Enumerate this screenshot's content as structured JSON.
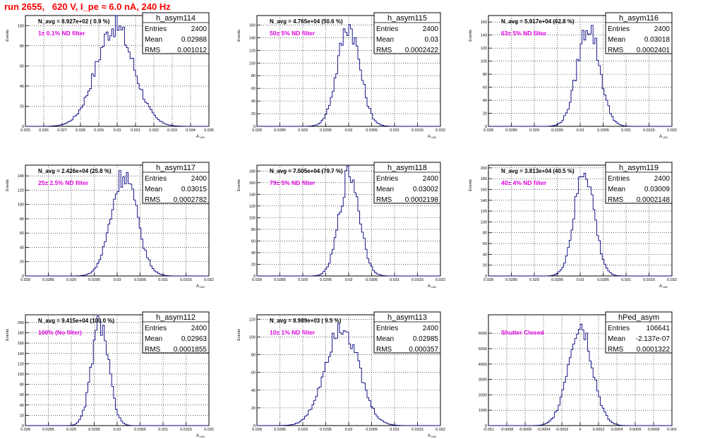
{
  "page": {
    "title": "run 2655,   620 V, I_pe ≈ 6.0 nA, 240 Hz"
  },
  "chart_data": [
    {
      "type": "histogram",
      "name": "h_asym114",
      "stats": {
        "Entries": "2400",
        "Mean": "0.02988",
        "RMS": "0.001012"
      },
      "navg": "N_avg = 8.927e+02 ( 0.9 %)",
      "filter": "1± 0.1% ND filter",
      "xlabel": "A_UID",
      "ylabel": "Events",
      "xlim": [
        0.025,
        0.035
      ],
      "xticks": [
        "0.025",
        "0.026",
        "0.027",
        "0.028",
        "0.029",
        "0.03",
        "0.031",
        "0.032",
        "0.033",
        "0.034",
        "0.035"
      ],
      "ylim": [
        0,
        110
      ],
      "yticks": [
        0,
        20,
        40,
        60,
        80,
        100
      ],
      "mean": 0.02988,
      "rms": 0.001012,
      "peak": 100
    },
    {
      "type": "histogram",
      "name": "h_asym115",
      "stats": {
        "Entries": "2400",
        "Mean": "0.03",
        "RMS": "0.0002422"
      },
      "navg": "N_avg = 4.765e+04 (50.6 %)",
      "filter": "50± 5% ND filter",
      "xlabel": "A_UID",
      "ylabel": "Events",
      "xlim": [
        0.028,
        0.032
      ],
      "xticks": [
        "0.028",
        "0.0285",
        "0.029",
        "0.0295",
        "0.03",
        "0.0305",
        "0.031",
        "0.0315",
        "0.032"
      ],
      "ylim": [
        0,
        175
      ],
      "yticks": [
        0,
        20,
        40,
        60,
        80,
        100,
        120,
        140,
        160
      ],
      "mean": 0.03,
      "rms": 0.0002422,
      "peak": 160
    },
    {
      "type": "histogram",
      "name": "h_asym116",
      "stats": {
        "Entries": "2400",
        "Mean": "0.03018",
        "RMS": "0.0002401"
      },
      "navg": "N_avg = 5.917e+04 (62.8 %)",
      "filter": "63± 5% ND filter",
      "xlabel": "A_UID",
      "ylabel": "Events",
      "xlim": [
        0.028,
        0.032
      ],
      "xticks": [
        "0.028",
        "0.0285",
        "0.029",
        "0.0295",
        "0.03",
        "0.0305",
        "0.031",
        "0.0315",
        "0.032"
      ],
      "ylim": [
        0,
        170
      ],
      "yticks": [
        0,
        20,
        40,
        60,
        80,
        100,
        120,
        140,
        160
      ],
      "mean": 0.03018,
      "rms": 0.0002401,
      "peak": 155
    },
    {
      "type": "histogram",
      "name": "h_asym117",
      "stats": {
        "Entries": "2400",
        "Mean": "0.03015",
        "RMS": "0.0002782"
      },
      "navg": "N_avg = 2.426e+04 (25.8 %)",
      "filter": "25± 2.5% ND filter",
      "xlabel": "A_UID",
      "ylabel": "Events",
      "xlim": [
        0.028,
        0.032
      ],
      "xticks": [
        "0.028",
        "0.0285",
        "0.029",
        "0.0295",
        "0.03",
        "0.0305",
        "0.031",
        "0.0315",
        "0.032"
      ],
      "ylim": [
        0,
        155
      ],
      "yticks": [
        0,
        20,
        40,
        60,
        80,
        100,
        120,
        140
      ],
      "mean": 0.03015,
      "rms": 0.0002782,
      "peak": 143
    },
    {
      "type": "histogram",
      "name": "h_asym118",
      "stats": {
        "Entries": "2400",
        "Mean": "0.03002",
        "RMS": "0.0002198"
      },
      "navg": "N_avg = 7.505e+04 (79.7 %)",
      "filter": "79± 5% ND filter",
      "xlabel": "A_UID",
      "ylabel": "Events",
      "xlim": [
        0.028,
        0.032
      ],
      "xticks": [
        "0.028",
        "0.0285",
        "0.029",
        "0.0295",
        "0.03",
        "0.0305",
        "0.031",
        "0.0315",
        "0.032"
      ],
      "ylim": [
        0,
        190
      ],
      "yticks": [
        0,
        20,
        40,
        60,
        80,
        100,
        120,
        140,
        160,
        180
      ],
      "mean": 0.03002,
      "rms": 0.0002198,
      "peak": 175
    },
    {
      "type": "histogram",
      "name": "h_asym119",
      "stats": {
        "Entries": "2400",
        "Mean": "0.03009",
        "RMS": "0.0002148"
      },
      "navg": "N_avg = 3.813e+04 (40.5 %)",
      "filter": "40± 4% ND filter",
      "xlabel": "A_UID",
      "ylabel": "Events",
      "xlim": [
        0.028,
        0.032
      ],
      "xticks": [
        "0.028",
        "0.0285",
        "0.029",
        "0.0295",
        "0.03",
        "0.0305",
        "0.031",
        "0.0315",
        "0.032"
      ],
      "ylim": [
        0,
        205
      ],
      "yticks": [
        0,
        20,
        40,
        60,
        80,
        100,
        120,
        140,
        160,
        180,
        200
      ],
      "mean": 0.03009,
      "rms": 0.0002148,
      "peak": 195
    },
    {
      "type": "histogram",
      "name": "h_asym112",
      "stats": {
        "Entries": "2400",
        "Mean": "0.02963",
        "RMS": "0.0001855"
      },
      "navg": "N_avg = 9.415e+04 (100.0 %)",
      "filter": "100% (No filter)",
      "xlabel": "A_UID",
      "ylabel": "Events",
      "xlim": [
        0.028,
        0.032
      ],
      "xticks": [
        "0.028",
        "0.0285",
        "0.029",
        "0.0295",
        "0.03",
        "0.0305",
        "0.031",
        "0.0315",
        "0.032"
      ],
      "ylim": [
        0,
        215
      ],
      "yticks": [
        0,
        20,
        40,
        60,
        80,
        100,
        120,
        140,
        160,
        180,
        200
      ],
      "mean": 0.02963,
      "rms": 0.0001855,
      "peak": 200
    },
    {
      "type": "histogram",
      "name": "h_asym113",
      "stats": {
        "Entries": "2400",
        "Mean": "0.02985",
        "RMS": "0.000357"
      },
      "navg": "N_avg = 8.989e+03 ( 9.5 %)",
      "filter": "10± 1% ND filter",
      "xlabel": "A_UID",
      "ylabel": "Events",
      "xlim": [
        0.028,
        0.032
      ],
      "xticks": [
        "0.028",
        "0.0285",
        "0.029",
        "0.0295",
        "0.03",
        "0.0305",
        "0.031",
        "0.0315",
        "0.032"
      ],
      "ylim": [
        0,
        125
      ],
      "yticks": [
        0,
        20,
        40,
        60,
        80,
        100,
        120
      ],
      "mean": 0.02985,
      "rms": 0.000357,
      "peak": 115
    },
    {
      "type": "histogram",
      "name": "hPed_asym",
      "stats": {
        "Entries": "106641",
        "Mean": "-2.137e-07",
        "RMS": "0.0001322"
      },
      "navg": "",
      "filter": "Shutter Closed",
      "xlabel": "",
      "ylabel": "",
      "xlim": [
        -0.001,
        0.001
      ],
      "xticks": [
        "-0.001",
        "-0.0008",
        "-0.0006",
        "-0.0004",
        "-0.0002",
        "0",
        "0.0002",
        "0.0004",
        "0.0006",
        "0.0008",
        "0.001"
      ],
      "ylim": [
        0,
        7200
      ],
      "yticks": [
        0,
        1000,
        2000,
        3000,
        4000,
        5000,
        6000
      ],
      "mean": -2.137e-07,
      "rms": 0.0001322,
      "peak": 6600
    }
  ]
}
